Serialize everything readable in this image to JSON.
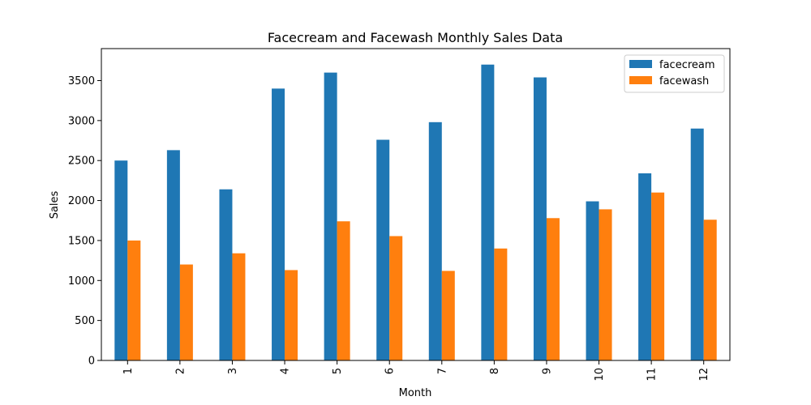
{
  "chart_data": {
    "type": "bar",
    "title": "Facecream and Facewash Monthly Sales Data",
    "xlabel": "Month",
    "ylabel": "Sales",
    "categories": [
      "1",
      "2",
      "3",
      "4",
      "5",
      "6",
      "7",
      "8",
      "9",
      "10",
      "11",
      "12"
    ],
    "series": [
      {
        "name": "facecream",
        "color": "#1f77b4",
        "values": [
          2500,
          2630,
          2140,
          3400,
          3600,
          2760,
          2980,
          3700,
          3540,
          1990,
          2340,
          2900
        ]
      },
      {
        "name": "facewash",
        "color": "#ff7f0e",
        "values": [
          1500,
          1200,
          1340,
          1130,
          1740,
          1555,
          1120,
          1400,
          1780,
          1890,
          2100,
          1760
        ]
      }
    ],
    "ylim": [
      0,
      3900
    ],
    "yticks": [
      0,
      500,
      1000,
      1500,
      2000,
      2500,
      3000,
      3500
    ],
    "grid": false,
    "legend_position": "top-right"
  }
}
